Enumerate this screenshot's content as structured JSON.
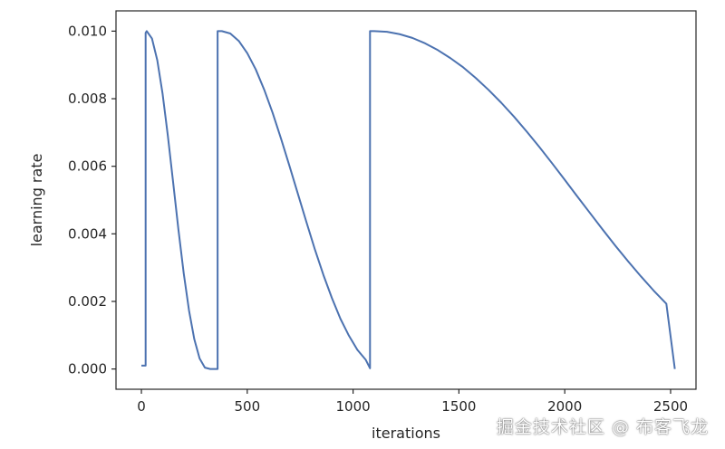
{
  "chart_data": {
    "type": "line",
    "title": "",
    "xlabel": "iterations",
    "ylabel": "learning rate",
    "xlim": [
      -120,
      2620
    ],
    "ylim": [
      -0.0006,
      0.0106
    ],
    "x_ticks": [
      0,
      500,
      1000,
      1500,
      2000,
      2500
    ],
    "x_tick_labels": [
      "0",
      "500",
      "1000",
      "1500",
      "2000",
      "2500"
    ],
    "y_ticks": [
      0.0,
      0.002,
      0.004,
      0.006,
      0.008,
      0.01
    ],
    "y_tick_labels": [
      "0.000",
      "0.002",
      "0.004",
      "0.006",
      "0.008",
      "0.010"
    ],
    "grid": false,
    "series": [
      {
        "color": "#4c72b0",
        "x": [
          0,
          20,
          20,
          25,
          50,
          75,
          100,
          125,
          150,
          175,
          200,
          225,
          250,
          275,
          300,
          325,
          350,
          360,
          360,
          380,
          420,
          460,
          500,
          540,
          580,
          620,
          660,
          700,
          740,
          780,
          820,
          860,
          900,
          940,
          980,
          1020,
          1060,
          1080,
          1080,
          1100,
          1160,
          1220,
          1280,
          1340,
          1400,
          1460,
          1520,
          1580,
          1640,
          1700,
          1760,
          1820,
          1880,
          1940,
          2000,
          2060,
          2120,
          2180,
          2240,
          2300,
          2360,
          2420,
          2480,
          2520
        ],
        "y": [
          0.0001,
          0.0001,
          0.00995,
          0.01,
          0.00978,
          0.00914,
          0.00815,
          0.0069,
          0.00552,
          0.00412,
          0.00283,
          0.00173,
          0.00088,
          0.00031,
          4e-05,
          0.0,
          0.0,
          0.0,
          0.01,
          0.01,
          0.00993,
          0.00971,
          0.00935,
          0.00887,
          0.00827,
          0.00758,
          0.00681,
          0.006,
          0.00517,
          0.00434,
          0.00353,
          0.00278,
          0.0021,
          0.00149,
          0.00099,
          0.00057,
          0.00027,
          2e-05,
          0.01,
          0.01,
          0.00998,
          0.00991,
          0.0098,
          0.00964,
          0.00944,
          0.0092,
          0.00893,
          0.00861,
          0.00826,
          0.00788,
          0.00747,
          0.00703,
          0.00657,
          0.00609,
          0.0056,
          0.0051,
          0.00461,
          0.00412,
          0.00364,
          0.00318,
          0.00274,
          0.00232,
          0.00193,
          0.0
        ]
      }
    ]
  },
  "watermark": "掘金技术社区 @ 布客飞龙"
}
